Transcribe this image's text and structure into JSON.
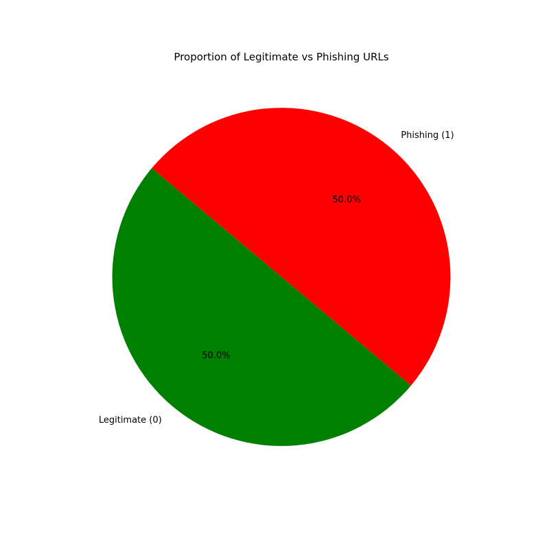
{
  "chart_data": {
    "type": "pie",
    "title": "Proportion of Legitimate vs Phishing URLs",
    "slices": [
      {
        "label": "Legitimate (0)",
        "value": 50.0,
        "percent_label": "50.0%",
        "color": "#008000"
      },
      {
        "label": "Phishing (1)",
        "value": 50.0,
        "percent_label": "50.0%",
        "color": "#ff0000"
      }
    ],
    "start_angle_deg": 140,
    "direction": "counterclockwise"
  }
}
